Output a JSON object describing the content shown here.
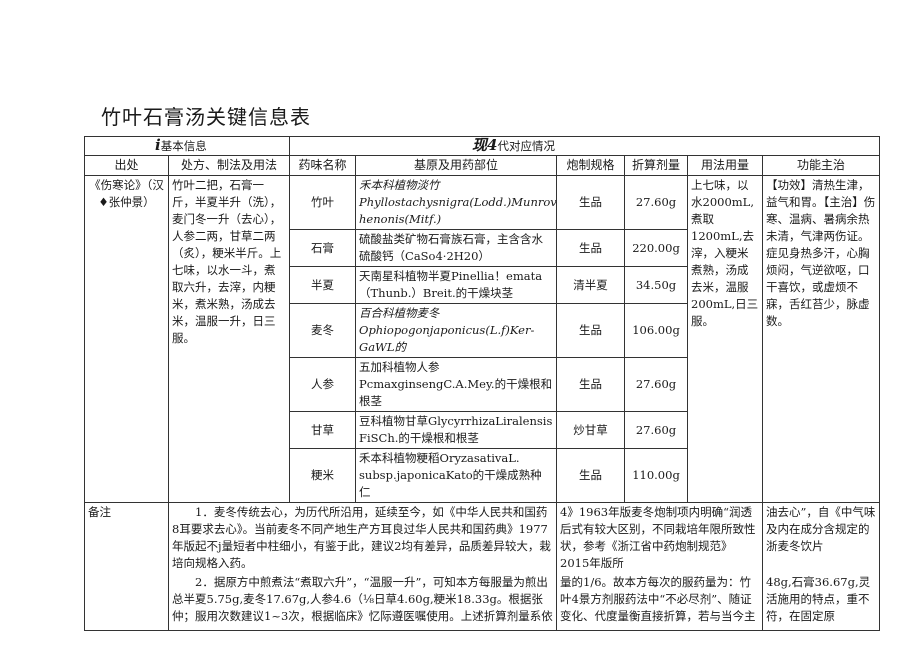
{
  "title": "竹叶石膏汤关键信息表",
  "header1": {
    "mark_left": "i",
    "left": "基本信息",
    "mark_right": "现4",
    "right": "代对应情况"
  },
  "header2": [
    "出处",
    "处方、制法及用法",
    "药味名称",
    "基原及用药部位",
    "炮制规格",
    "折算剂量",
    "用法用量",
    "功能主治"
  ],
  "source": "《伤寒论》（汉♦张仲景）",
  "prescription": "竹叶二把，石膏一斤，半夏半升（洗），麦门冬一升（去心），人参二两，甘草二两（炙），粳米半斤。上七味，以水一斗，煮取六升，去滓，内粳米，煮米熟，汤成去米，温服一升，日三服。",
  "herbs": [
    {
      "name": "竹叶",
      "origin": "禾本科植物淡竹Phyllostachysnigra(Lodd.)Munrovan henonis(Mitf.)",
      "processing": "生品",
      "dose": "27.60g"
    },
    {
      "name": "石膏",
      "origin": "硫酸盐类矿物石膏族石膏，主含含水硫酸钙（CaSo4·2H20）",
      "processing": "生品",
      "dose": "220.00g"
    },
    {
      "name": "半夏",
      "origin": "天南星科植物半夏Pinellia！emata（Thunb.）Breit.的干燥块茎",
      "processing": "清半夏",
      "dose": "34.50g"
    },
    {
      "name": "麦冬",
      "origin": "百合科植物麦冬Ophiopogonjaponicus(L.f)Ker-GaWL的",
      "processing": "生品",
      "dose": "106.00g"
    },
    {
      "name": "人参",
      "origin": "五加科植物人参PcmaxginsengC.A.Mey.的干燥根和根茎",
      "processing": "生品",
      "dose": "27.60g"
    },
    {
      "name": "甘草",
      "origin": "豆科植物甘草GlycyrrhizaLiralensis FiSCh.的干燥根和根茎",
      "processing": "炒甘草",
      "dose": "27.60g"
    },
    {
      "name": "粳米",
      "origin": "禾本科植物粳稻OryzasativaL. subsp.japonicaKato的干燥成熟种仁",
      "processing": "生品",
      "dose": "110.00g"
    }
  ],
  "usage": "上七味，以水2000mL,煮取1200mL,去滓，入粳米煮熟，汤成去米，温服200mL,日三服。",
  "function": "【功效】清热生津，益气和胃。【主治】伤寒、温病、暑病余热未清，气津两伤证。症见身热多汗，心胸烦闷，气逆欲呕，口干喜饮，或虚烦不寐，舌红苔少，脉虚数。",
  "notes": {
    "label": "备注",
    "p1": "1．麦冬传统去心，为历代所沿用，延续至今，如《中华人民共和国药8耳要求去心》。当前麦冬不同产地生产方耳良过华人民共和国药典》1977年版起不j量短者中柱细小，有鉴于此，建议2均有差异，品质差异较大，栽培向规格入药。",
    "p1_tail": "4》1963年版麦冬炮制项内明确“润透后式有较大区别，不同栽培年限所致性状，参考《浙江省中药炮制规范》2015年版所",
    "p1_end": "油去心”，自《中气味及内在成分含规定的浙麦冬饮片",
    "p2": "2．据原方中煎煮法“煮取六升”，“温服一升”，可知本方每服量为煎出总半夏5.75g,麦冬17.67g,人参4.6（⅛日草4.60g,粳米18.33g。根据张仲；服用次数建议1~3次，根据临床》忆际遵医嘱使用。上述折算剂量系依议，",
    "p2_tail": "量的1/6。故本方每次的服药量为：竹叶4景方剂服药法中“不必尽剂”、随证变化、代度量衡直接折算，若与当今主流用量严一",
    "p2_end": "48g,石膏36.67g,灵活施用的特点，重不符，在固定原"
  }
}
